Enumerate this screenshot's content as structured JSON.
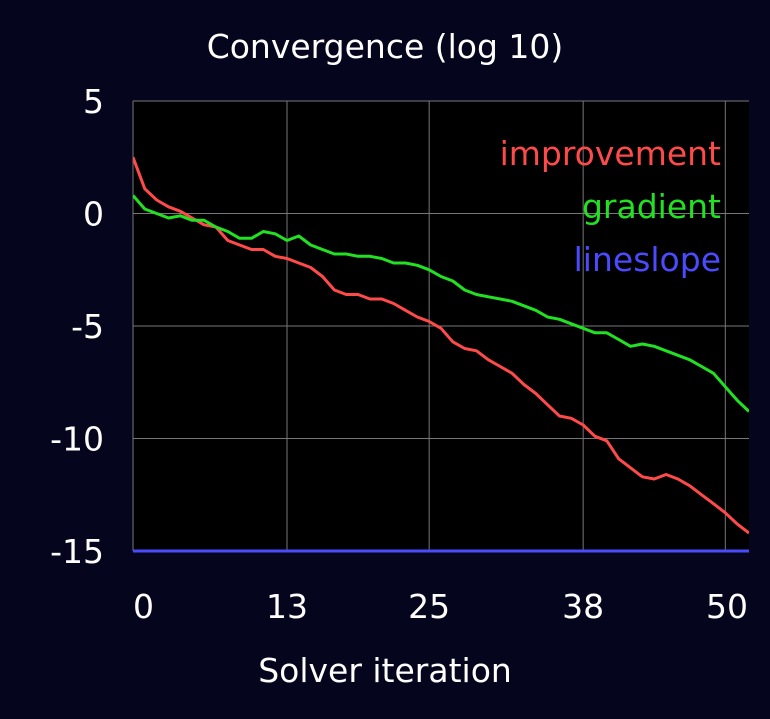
{
  "chart_data": {
    "type": "line",
    "title": "Convergence (log 10)",
    "xlabel": "Solver iteration",
    "ylabel": "",
    "xlim": [
      0,
      52
    ],
    "ylim": [
      -15,
      5
    ],
    "x_ticks": [
      0,
      13,
      25,
      38,
      50
    ],
    "x_tick_labels": [
      "0",
      "13",
      "25",
      "38",
      "50"
    ],
    "y_ticks": [
      5,
      0,
      -5,
      -10,
      -15
    ],
    "y_tick_labels": [
      "5",
      "0",
      "-5",
      "-10",
      "-15"
    ],
    "grid": true,
    "legend_position": "top-right",
    "colors": {
      "background": "#05051e",
      "plot_area": "#000000",
      "grid": "#777777",
      "text": "#ffffff"
    },
    "x": [
      0,
      1,
      2,
      3,
      4,
      5,
      6,
      7,
      8,
      9,
      10,
      11,
      12,
      13,
      14,
      15,
      16,
      17,
      18,
      19,
      20,
      21,
      22,
      23,
      24,
      25,
      26,
      27,
      28,
      29,
      30,
      31,
      32,
      33,
      34,
      35,
      36,
      37,
      38,
      39,
      40,
      41,
      42,
      43,
      44,
      45,
      46,
      47,
      48,
      49,
      50,
      51,
      52
    ],
    "series": [
      {
        "name": "improvement",
        "color": "#ff4a4a",
        "values": [
          2.5,
          1.1,
          0.6,
          0.3,
          0.1,
          -0.2,
          -0.5,
          -0.6,
          -1.2,
          -1.4,
          -1.6,
          -1.6,
          -1.9,
          -2.0,
          -2.2,
          -2.4,
          -2.8,
          -3.4,
          -3.6,
          -3.6,
          -3.8,
          -3.8,
          -4.0,
          -4.3,
          -4.6,
          -4.8,
          -5.1,
          -5.7,
          -6.0,
          -6.1,
          -6.5,
          -6.8,
          -7.1,
          -7.6,
          -8.0,
          -8.5,
          -9.0,
          -9.1,
          -9.4,
          -9.9,
          -10.1,
          -10.9,
          -11.3,
          -11.7,
          -11.8,
          -11.6,
          -11.8,
          -12.1,
          -12.5,
          -12.9,
          -13.3,
          -13.8,
          -14.2
        ]
      },
      {
        "name": "gradient",
        "color": "#22e022",
        "values": [
          0.8,
          0.2,
          0.0,
          -0.2,
          -0.1,
          -0.3,
          -0.3,
          -0.6,
          -0.8,
          -1.1,
          -1.1,
          -0.8,
          -0.9,
          -1.2,
          -1.0,
          -1.4,
          -1.6,
          -1.8,
          -1.8,
          -1.9,
          -1.9,
          -2.0,
          -2.2,
          -2.2,
          -2.3,
          -2.5,
          -2.8,
          -3.0,
          -3.4,
          -3.6,
          -3.7,
          -3.8,
          -3.9,
          -4.1,
          -4.3,
          -4.6,
          -4.7,
          -4.9,
          -5.1,
          -5.3,
          -5.3,
          -5.6,
          -5.9,
          -5.8,
          -5.9,
          -6.1,
          -6.3,
          -6.5,
          -6.8,
          -7.1,
          -7.7,
          -8.3,
          -8.8
        ]
      },
      {
        "name": "lineslope",
        "color": "#4a4aff",
        "values": [
          -15,
          -15,
          -15,
          -15,
          -15,
          -15,
          -15,
          -15,
          -15,
          -15,
          -15,
          -15,
          -15,
          -15,
          -15,
          -15,
          -15,
          -15,
          -15,
          -15,
          -15,
          -15,
          -15,
          -15,
          -15,
          -15,
          -15,
          -15,
          -15,
          -15,
          -15,
          -15,
          -15,
          -15,
          -15,
          -15,
          -15,
          -15,
          -15,
          -15,
          -15,
          -15,
          -15,
          -15,
          -15,
          -15,
          -15,
          -15,
          -15,
          -15,
          -15,
          -15,
          -15
        ]
      }
    ]
  }
}
